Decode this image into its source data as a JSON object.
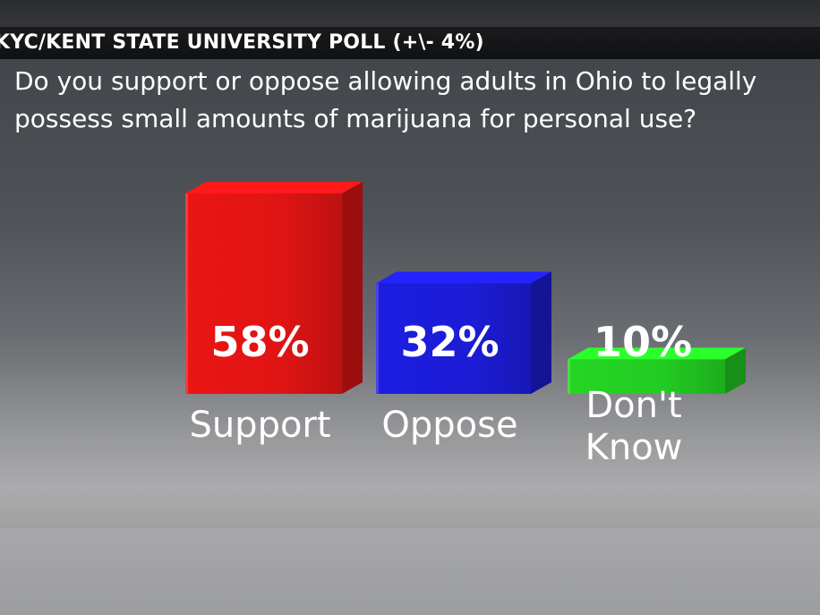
{
  "header": {
    "poll_title": "KYC/KENT STATE UNIVERSITY POLL (+\\- 4%)"
  },
  "question": {
    "line1": "Do you support or oppose allowing adults in Ohio to legally",
    "line2": "possess small amounts of marijuana for personal use?"
  },
  "chart_data": {
    "type": "bar",
    "categories": [
      "Support",
      "Oppose",
      "Don't Know"
    ],
    "category_lines": [
      [
        "Support"
      ],
      [
        "Oppose"
      ],
      [
        "Don't",
        "Know"
      ]
    ],
    "values": [
      58,
      32,
      10
    ],
    "value_labels": [
      "58%",
      "32%",
      "10%"
    ],
    "colors": [
      "#e01414",
      "#1c1cd6",
      "#22cc22"
    ],
    "title": "Do you support or oppose allowing adults in Ohio to legally possess small amounts of marijuana for personal use?",
    "xlabel": "",
    "ylabel": "",
    "ylim": [
      0,
      60
    ],
    "grid": false,
    "legend": "none"
  }
}
